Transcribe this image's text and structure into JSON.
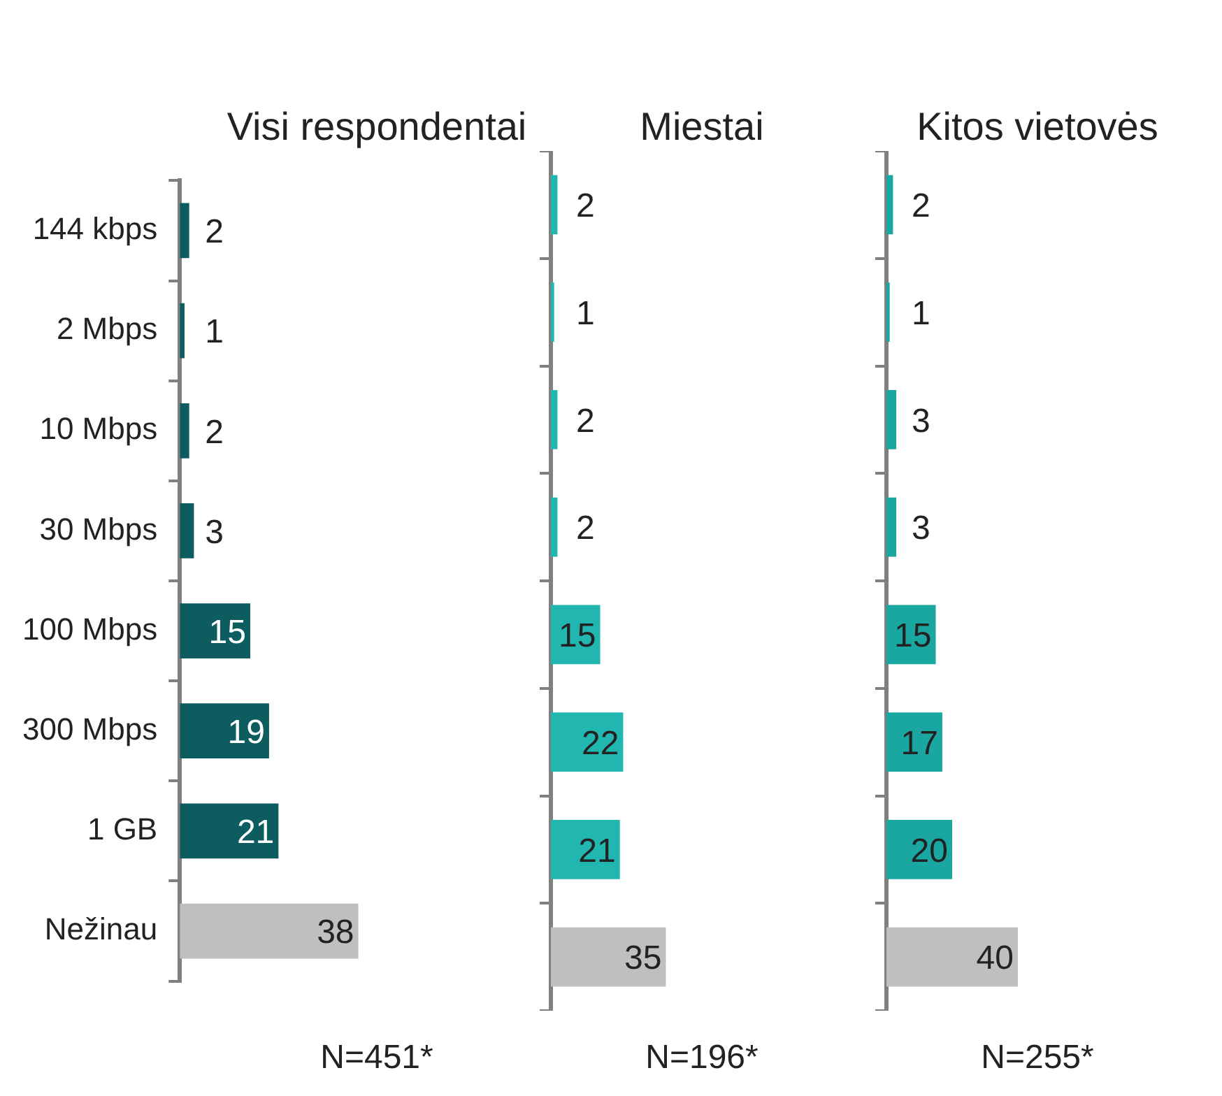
{
  "chart_data": [
    {
      "type": "bar",
      "orientation": "horizontal",
      "title": "Visi respondentai",
      "categories": [
        "144 kbps",
        "2 Mbps",
        "10 Mbps",
        "30 Mbps",
        "100 Mbps",
        "300 Mbps",
        "1 GB",
        "Nežinau"
      ],
      "values": [
        2,
        1,
        2,
        3,
        15,
        19,
        21,
        38
      ],
      "colors": [
        "#0d5c60",
        "#0d5c60",
        "#0d5c60",
        "#0d5c60",
        "#0d5c60",
        "#0d5c60",
        "#0d5c60",
        "#bfbfbf"
      ],
      "data_labels": true,
      "tick_labels": "y",
      "grid": false,
      "legend": false,
      "annotations": [
        "N=451*"
      ]
    },
    {
      "type": "bar",
      "orientation": "horizontal",
      "title": "Miestai",
      "categories": [
        null,
        null,
        null,
        null,
        null,
        null,
        null,
        null
      ],
      "values": [
        2,
        1,
        2,
        2,
        15,
        22,
        21,
        35
      ],
      "colors": [
        "#22b6b0",
        "#22b6b0",
        "#22b6b0",
        "#22b6b0",
        "#22b6b0",
        "#22b6b0",
        "#22b6b0",
        "#bfbfbf"
      ],
      "data_labels": true,
      "tick_labels": false,
      "grid": false,
      "legend": false,
      "annotations": [
        "N=196*"
      ]
    },
    {
      "type": "bar",
      "orientation": "horizontal",
      "title": "Kitos vietovės",
      "categories": [
        null,
        null,
        null,
        null,
        null,
        null,
        null,
        null
      ],
      "values": [
        2,
        1,
        3,
        3,
        15,
        17,
        20,
        40
      ],
      "colors": [
        "#1ba7a1",
        "#1ba7a1",
        "#1ba7a1",
        "#1ba7a1",
        "#1ba7a1",
        "#1ba7a1",
        "#1ba7a1",
        "#bfbfbf"
      ],
      "data_labels": true,
      "tick_labels": false,
      "grid": false,
      "legend": false,
      "annotations": [
        "N=255*"
      ]
    }
  ]
}
